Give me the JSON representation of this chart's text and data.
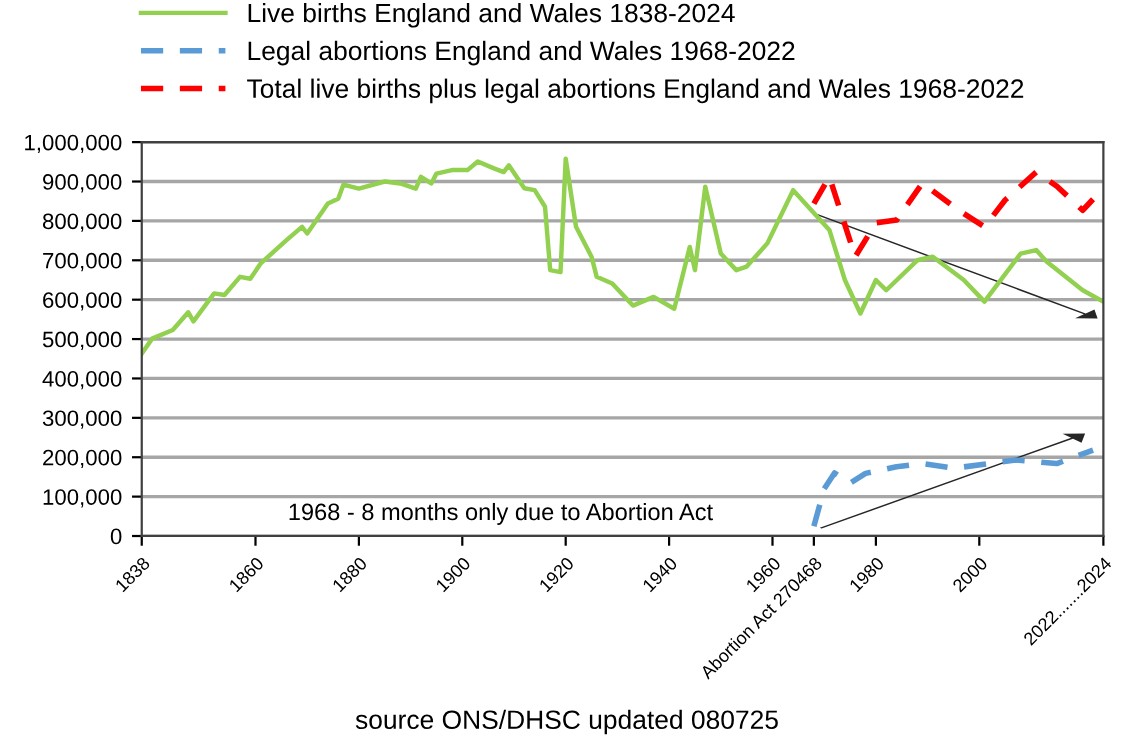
{
  "chart_data": {
    "type": "line",
    "xlim": [
      1838,
      2024
    ],
    "xticks": [
      1838,
      1860,
      1880,
      1900,
      1920,
      1940,
      1960,
      {
        "value": 1968,
        "label": "Abortion Act 270468"
      },
      1980,
      2000,
      {
        "value": 2024,
        "label": "2022.......2024"
      }
    ],
    "ylim": [
      0,
      1000000
    ],
    "yticks": [
      {
        "value": 0,
        "label": "0"
      },
      {
        "value": 100000,
        "label": "100,000"
      },
      {
        "value": 200000,
        "label": "200,000"
      },
      {
        "value": 300000,
        "label": "300,000"
      },
      {
        "value": 400000,
        "label": "400,000"
      },
      {
        "value": 500000,
        "label": "500,000"
      },
      {
        "value": 600000,
        "label": "600,000"
      },
      {
        "value": 700000,
        "label": "700,000"
      },
      {
        "value": 800000,
        "label": "800,000"
      },
      {
        "value": 900000,
        "label": "900,000"
      },
      {
        "value": 1000000,
        "label": "1,000,000"
      }
    ],
    "grid": "y",
    "legend": "top",
    "series": [
      {
        "name": "Live births England and Wales 1838-2024",
        "color": "#92d050",
        "line_style": "solid",
        "x": [
          1838,
          1840,
          1844,
          1847,
          1848,
          1852,
          1854,
          1857,
          1859,
          1861,
          1866,
          1869,
          1870,
          1874,
          1876,
          1877,
          1880,
          1885,
          1888,
          1891,
          1892,
          1894,
          1895,
          1898,
          1901,
          1903,
          1906,
          1908,
          1909,
          1912,
          1914,
          1916,
          1917,
          1919,
          1920,
          1922,
          1925,
          1926,
          1929,
          1933,
          1937,
          1941,
          1944,
          1945,
          1947,
          1950,
          1953,
          1955,
          1959,
          1964,
          1971,
          1974,
          1977,
          1980,
          1982,
          1988,
          1991,
          1997,
          2001,
          2008,
          2011,
          2013,
          2020,
          2024
        ],
        "values": [
          463000,
          501000,
          523000,
          568000,
          545000,
          616000,
          612000,
          658000,
          653000,
          692000,
          751000,
          785000,
          768000,
          844000,
          856000,
          892000,
          882000,
          900000,
          895000,
          882000,
          912000,
          895000,
          920000,
          929000,
          929000,
          951000,
          934000,
          924000,
          941000,
          883000,
          878000,
          836000,
          675000,
          670000,
          958000,
          785000,
          709000,
          658000,
          641000,
          585000,
          607000,
          577000,
          734000,
          675000,
          887000,
          717000,
          675000,
          684000,
          743000,
          878000,
          777000,
          650000,
          565000,
          650000,
          624000,
          700000,
          709000,
          650000,
          595000,
          717000,
          726000,
          697000,
          624000,
          595000
        ]
      },
      {
        "name": "Legal abortions England and Wales 1968-2022",
        "color": "#5b9bd5",
        "line_style": "dashed",
        "x": [
          1968,
          1970,
          1972,
          1975,
          1978,
          1984,
          1989,
          1995,
          2002,
          2007,
          2015,
          2022
        ],
        "values": [
          25000,
          120000,
          160000,
          134000,
          159000,
          176000,
          184000,
          172000,
          184000,
          193000,
          184000,
          218000
        ]
      },
      {
        "name": "Total live births plus legal abortions England and Wales 1968-2022",
        "color": "#ff0000",
        "line_style": "dashed",
        "x": [
          1968,
          1971,
          1976,
          1980,
          1984,
          1989,
          1996,
          2001,
          2005,
          2011,
          2015,
          2020,
          2022
        ],
        "values": [
          844000,
          912000,
          709000,
          795000,
          802000,
          896000,
          827000,
          785000,
          853000,
          924000,
          888000,
          827000,
          855000
        ]
      }
    ],
    "annotations": [
      "1968 - 8 months only due to Abortion Act",
      "source ONS/DHSC updated 080725"
    ]
  }
}
